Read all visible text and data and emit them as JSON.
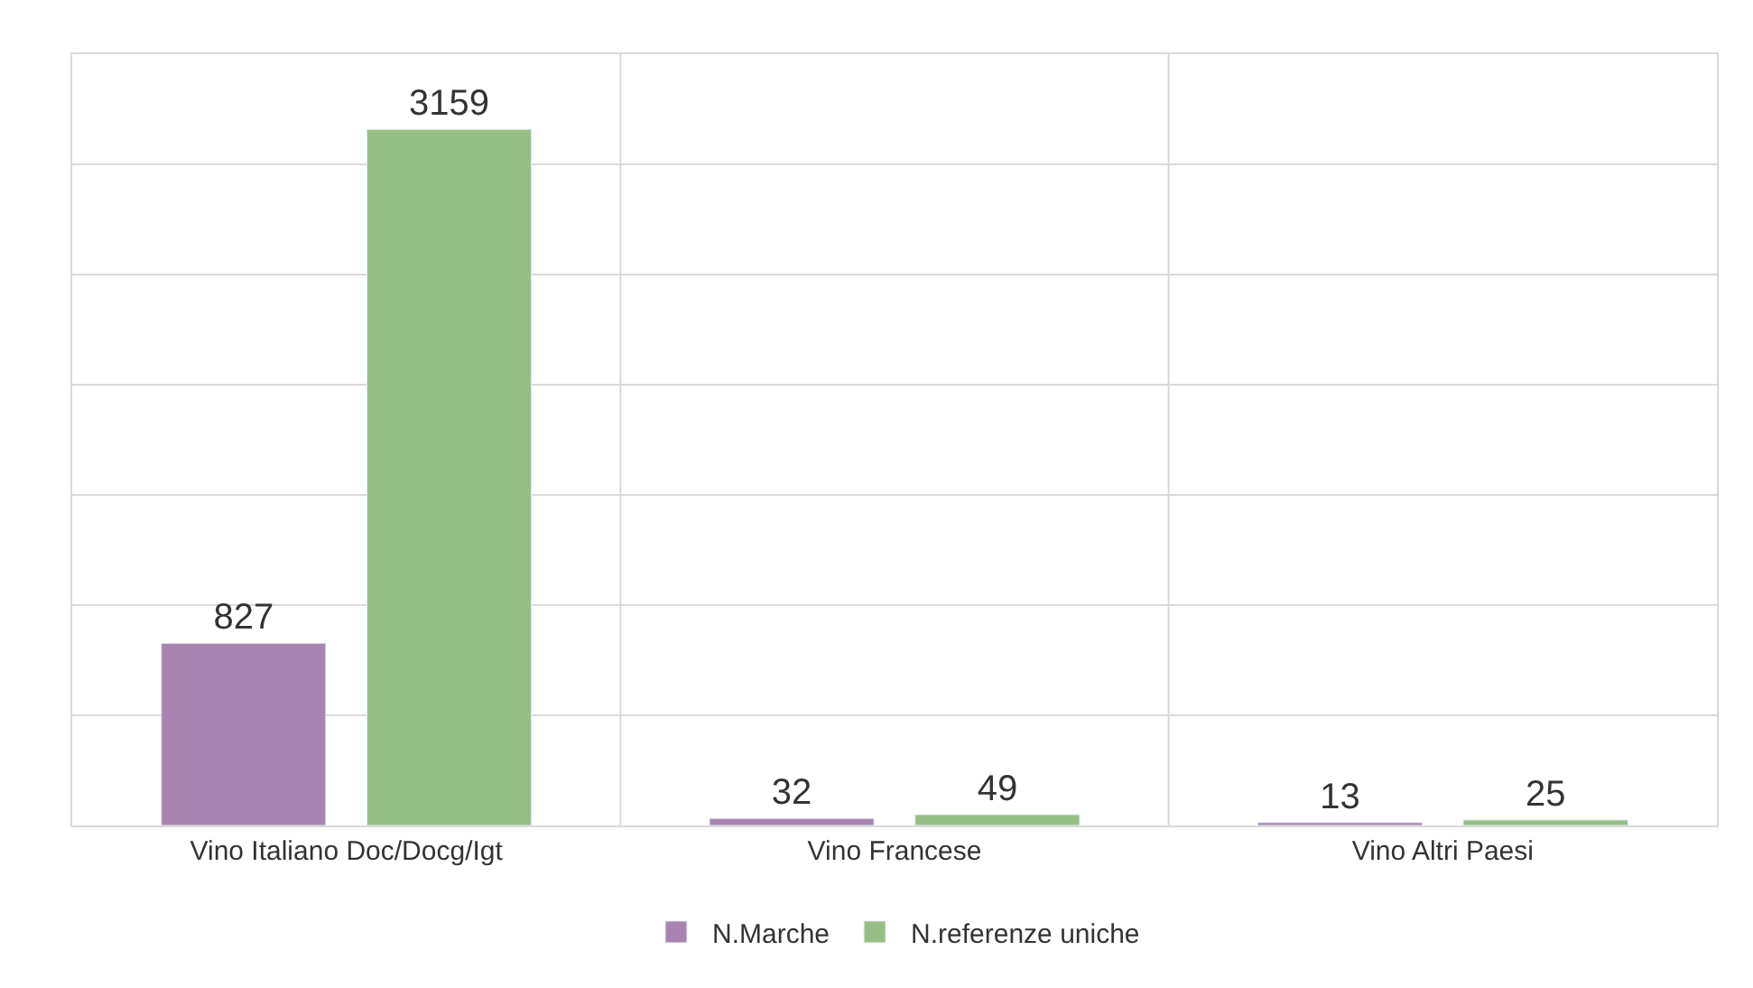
{
  "chart_data": {
    "type": "bar",
    "categories": [
      "Vino Italiano Doc/Docg/Igt",
      "Vino Francese",
      "Vino Altri Paesi"
    ],
    "series": [
      {
        "name": "N.Marche",
        "color": "#a885b0",
        "values": [
          827,
          32,
          13
        ]
      },
      {
        "name": "N.referenze uniche",
        "color": "#96bf85",
        "values": [
          3159,
          49,
          25
        ]
      }
    ],
    "ylim": [
      0,
      3500
    ],
    "yticks": [
      {
        "value": 0,
        "label": null
      },
      {
        "value": 500,
        "label": null
      },
      {
        "value": 1000,
        "label": null
      },
      {
        "value": 1500,
        "label": null
      },
      {
        "value": 2000,
        "label": null
      },
      {
        "value": 2500,
        "label": null
      },
      {
        "value": 3000,
        "label": null
      },
      {
        "value": 3500,
        "label": null
      }
    ],
    "tick_labels": "x",
    "grid": true,
    "data_labels": true,
    "legend": "bottom"
  }
}
